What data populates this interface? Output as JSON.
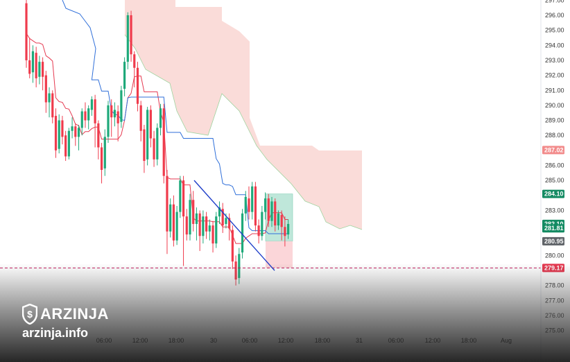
{
  "chart_data": {
    "type": "candlestick",
    "price_axis": {
      "ticks": [
        297.0,
        296.0,
        295.0,
        294.0,
        293.0,
        292.0,
        291.0,
        290.0,
        289.0,
        288.0,
        286.0,
        285.0,
        283.0,
        280.0,
        278.0,
        277.0,
        276.0,
        275.0
      ],
      "labels": [
        "297.00",
        "296.00",
        "295.00",
        "294.00",
        "293.00",
        "292.00",
        "291.00",
        "290.00",
        "289.00",
        "288.00",
        "286.00",
        "285.00",
        "283.00",
        "280.00",
        "278.00",
        "277.00",
        "276.00",
        "275.00"
      ]
    },
    "time_axis": {
      "labels": [
        "18:00",
        "06:00",
        "12:00",
        "18:00",
        "30",
        "06:00",
        "12:00",
        "18:00",
        "31",
        "06:00",
        "12:00",
        "18:00",
        "Aug"
      ]
    },
    "price_badges": [
      {
        "value": "287.02",
        "color": "#f28b8b"
      },
      {
        "value": "284.10",
        "color": "#138a62"
      },
      {
        "value": "282.10",
        "color": "#138a62"
      },
      {
        "value": "281.81",
        "color": "#138a62"
      },
      {
        "value": "280.95",
        "color": "#5f6368"
      },
      {
        "value": "279.17",
        "color": "#e53950"
      }
    ],
    "colors": {
      "up": "#1fa97a",
      "down": "#ef3b4c",
      "conversion_line": "#e53950",
      "base_line": "#2f6fd9",
      "cloud": "#fadcd9",
      "cloud_edge": "#9fd39f",
      "trendline": "#1e3ec9",
      "dashed_level": "#c2185b",
      "target_zone": "#bfe7da",
      "stop_zone": "#fbd6d9"
    },
    "candles": [
      {
        "o": 296.8,
        "h": 297.1,
        "c": 293.0,
        "l": 292.5
      },
      {
        "o": 293.0,
        "h": 294.5,
        "c": 292.1,
        "l": 291.8
      },
      {
        "o": 292.2,
        "h": 294.0,
        "c": 293.6,
        "l": 291.5
      },
      {
        "o": 293.5,
        "h": 293.9,
        "c": 291.8,
        "l": 291.2
      },
      {
        "o": 291.9,
        "h": 293.3,
        "c": 292.9,
        "l": 291.4
      },
      {
        "o": 292.9,
        "h": 293.2,
        "c": 291.9,
        "l": 291.0
      },
      {
        "o": 292.0,
        "h": 292.3,
        "c": 290.2,
        "l": 289.5
      },
      {
        "o": 290.2,
        "h": 291.2,
        "c": 290.8,
        "l": 289.2
      },
      {
        "o": 290.8,
        "h": 291.0,
        "c": 289.2,
        "l": 288.8
      },
      {
        "o": 289.3,
        "h": 289.8,
        "c": 287.0,
        "l": 286.5
      },
      {
        "o": 287.1,
        "h": 289.4,
        "c": 289.0,
        "l": 286.8
      },
      {
        "o": 289.0,
        "h": 289.3,
        "c": 287.9,
        "l": 287.4
      },
      {
        "o": 288.0,
        "h": 288.3,
        "c": 286.6,
        "l": 286.3
      },
      {
        "o": 286.6,
        "h": 288.5,
        "c": 288.3,
        "l": 286.4
      },
      {
        "o": 288.3,
        "h": 289.2,
        "c": 288.6,
        "l": 287.8
      },
      {
        "o": 288.6,
        "h": 288.8,
        "c": 287.9,
        "l": 287.3
      },
      {
        "o": 287.9,
        "h": 288.7,
        "c": 288.5,
        "l": 287.0
      },
      {
        "o": 288.5,
        "h": 289.8,
        "c": 289.6,
        "l": 288.0
      },
      {
        "o": 289.6,
        "h": 290.2,
        "c": 289.0,
        "l": 288.5
      },
      {
        "o": 289.0,
        "h": 290.0,
        "c": 289.8,
        "l": 288.4
      },
      {
        "o": 289.7,
        "h": 290.6,
        "c": 290.4,
        "l": 289.3
      },
      {
        "o": 290.4,
        "h": 290.7,
        "c": 288.8,
        "l": 287.2
      },
      {
        "o": 288.8,
        "h": 289.0,
        "c": 287.2,
        "l": 286.4
      },
      {
        "o": 287.2,
        "h": 287.5,
        "c": 285.7,
        "l": 284.8
      },
      {
        "o": 285.8,
        "h": 288.4,
        "c": 287.9,
        "l": 285.3
      },
      {
        "o": 287.9,
        "h": 290.3,
        "c": 290.0,
        "l": 287.5
      },
      {
        "o": 290.0,
        "h": 290.4,
        "c": 289.2,
        "l": 287.9
      },
      {
        "o": 289.2,
        "h": 290.2,
        "c": 289.7,
        "l": 288.6
      },
      {
        "o": 289.6,
        "h": 290.0,
        "c": 288.8,
        "l": 287.6
      },
      {
        "o": 288.9,
        "h": 291.3,
        "c": 291.0,
        "l": 288.5
      },
      {
        "o": 291.1,
        "h": 293.2,
        "c": 292.9,
        "l": 290.6
      },
      {
        "o": 292.9,
        "h": 296.2,
        "c": 296.0,
        "l": 292.4
      },
      {
        "o": 296.0,
        "h": 296.3,
        "c": 293.4,
        "l": 292.9
      },
      {
        "o": 293.4,
        "h": 293.6,
        "c": 292.5,
        "l": 291.2
      },
      {
        "o": 292.5,
        "h": 292.9,
        "c": 290.1,
        "l": 289.6
      },
      {
        "o": 290.0,
        "h": 290.3,
        "c": 288.3,
        "l": 287.6
      },
      {
        "o": 288.4,
        "h": 288.7,
        "c": 286.3,
        "l": 285.5
      },
      {
        "o": 286.4,
        "h": 289.9,
        "c": 289.7,
        "l": 286.0
      },
      {
        "o": 289.7,
        "h": 290.0,
        "c": 287.8,
        "l": 287.2
      },
      {
        "o": 287.8,
        "h": 288.3,
        "c": 286.4,
        "l": 285.9
      },
      {
        "o": 286.4,
        "h": 288.8,
        "c": 288.5,
        "l": 286.0
      },
      {
        "o": 288.5,
        "h": 290.1,
        "c": 289.8,
        "l": 288.0
      },
      {
        "o": 289.8,
        "h": 290.1,
        "c": 285.3,
        "l": 284.8
      },
      {
        "o": 285.3,
        "h": 285.7,
        "c": 281.6,
        "l": 280.1
      },
      {
        "o": 281.6,
        "h": 283.8,
        "c": 283.4,
        "l": 281.2
      },
      {
        "o": 283.4,
        "h": 284.0,
        "c": 281.0,
        "l": 280.6
      },
      {
        "o": 281.0,
        "h": 283.3,
        "c": 282.9,
        "l": 280.7
      },
      {
        "o": 282.9,
        "h": 285.3,
        "c": 285.0,
        "l": 282.5
      },
      {
        "o": 285.0,
        "h": 285.3,
        "c": 282.6,
        "l": 279.3
      },
      {
        "o": 282.6,
        "h": 283.1,
        "c": 281.4,
        "l": 281.0
      },
      {
        "o": 281.4,
        "h": 284.1,
        "c": 283.7,
        "l": 281.0
      },
      {
        "o": 283.7,
        "h": 284.3,
        "c": 282.1,
        "l": 281.6
      },
      {
        "o": 282.1,
        "h": 283.2,
        "c": 282.8,
        "l": 281.0
      },
      {
        "o": 282.8,
        "h": 283.0,
        "c": 281.3,
        "l": 280.3
      },
      {
        "o": 281.3,
        "h": 283.0,
        "c": 282.6,
        "l": 280.8
      },
      {
        "o": 282.6,
        "h": 282.9,
        "c": 281.6,
        "l": 281.1
      },
      {
        "o": 281.6,
        "h": 282.4,
        "c": 282.0,
        "l": 281.0
      },
      {
        "o": 282.0,
        "h": 282.3,
        "c": 280.8,
        "l": 280.2
      },
      {
        "o": 280.8,
        "h": 282.9,
        "c": 282.6,
        "l": 280.5
      },
      {
        "o": 282.6,
        "h": 283.6,
        "c": 283.2,
        "l": 282.1
      },
      {
        "o": 283.1,
        "h": 283.5,
        "c": 282.0,
        "l": 281.5
      },
      {
        "o": 282.1,
        "h": 282.8,
        "c": 282.5,
        "l": 281.8
      },
      {
        "o": 282.5,
        "h": 282.8,
        "c": 281.8,
        "l": 281.0
      },
      {
        "o": 281.7,
        "h": 282.0,
        "c": 279.6,
        "l": 279.1
      },
      {
        "o": 279.6,
        "h": 280.0,
        "c": 278.4,
        "l": 278.0
      },
      {
        "o": 278.5,
        "h": 280.5,
        "c": 280.1,
        "l": 278.1
      },
      {
        "o": 280.2,
        "h": 283.1,
        "c": 282.8,
        "l": 279.8
      },
      {
        "o": 282.8,
        "h": 284.3,
        "c": 283.9,
        "l": 282.3
      },
      {
        "o": 283.8,
        "h": 284.6,
        "c": 282.9,
        "l": 282.4
      },
      {
        "o": 282.9,
        "h": 284.9,
        "c": 284.6,
        "l": 282.4
      },
      {
        "o": 284.6,
        "h": 284.9,
        "c": 282.0,
        "l": 281.6
      },
      {
        "o": 282.0,
        "h": 282.4,
        "c": 281.3,
        "l": 280.8
      },
      {
        "o": 281.3,
        "h": 283.3,
        "c": 282.9,
        "l": 281.0
      },
      {
        "o": 282.9,
        "h": 284.2,
        "c": 283.8,
        "l": 282.4
      },
      {
        "o": 283.8,
        "h": 284.1,
        "c": 282.3,
        "l": 281.9
      },
      {
        "o": 282.3,
        "h": 283.9,
        "c": 283.6,
        "l": 281.9
      },
      {
        "o": 283.6,
        "h": 283.8,
        "c": 282.0,
        "l": 281.6
      },
      {
        "o": 282.0,
        "h": 283.0,
        "c": 282.8,
        "l": 281.7
      },
      {
        "o": 282.7,
        "h": 283.0,
        "c": 281.9,
        "l": 281.0
      },
      {
        "o": 281.9,
        "h": 282.6,
        "c": 281.3,
        "l": 280.6
      },
      {
        "o": 281.4,
        "h": 282.4,
        "c": 282.1,
        "l": 281.1
      }
    ]
  },
  "footer": {
    "brand_name": "ARZINJA",
    "brand_url": "arzinja.info"
  }
}
